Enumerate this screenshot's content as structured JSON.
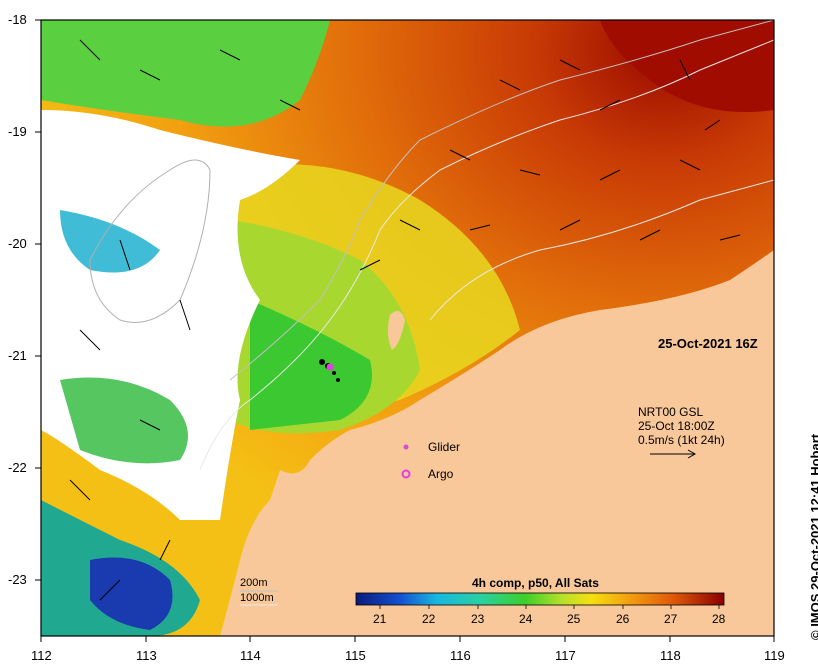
{
  "map": {
    "timestamp": "25-Oct-2021 16Z",
    "current_info": [
      "NRT00 GSL",
      "25-Oct 18:00Z",
      "0.5m/s (1kt 24h)"
    ],
    "credit": "© IMOS 29-Oct-2021 12:41 Hobart"
  },
  "legend": {
    "glider": "Glider",
    "argo": "Argo",
    "depth_labels": [
      "200m",
      "1000m"
    ]
  },
  "colorbar": {
    "title": "4h comp, p50, All Sats",
    "ticks": [
      "21",
      "22",
      "23",
      "24",
      "25",
      "26",
      "27",
      "28"
    ]
  },
  "axes": {
    "lon_ticks": [
      "112",
      "113",
      "114",
      "115",
      "116",
      "117",
      "118",
      "119"
    ],
    "lat_ticks": [
      "-18",
      "-19",
      "-20",
      "-21",
      "-22",
      "-23"
    ]
  },
  "colors": {
    "land": "#f8c89a",
    "cloud": "#ffffff",
    "glider": "#d24fd0",
    "argo": "#e33fe0",
    "sst_cold": "#0a1a7a",
    "sst_warm": "#8a0000"
  }
}
